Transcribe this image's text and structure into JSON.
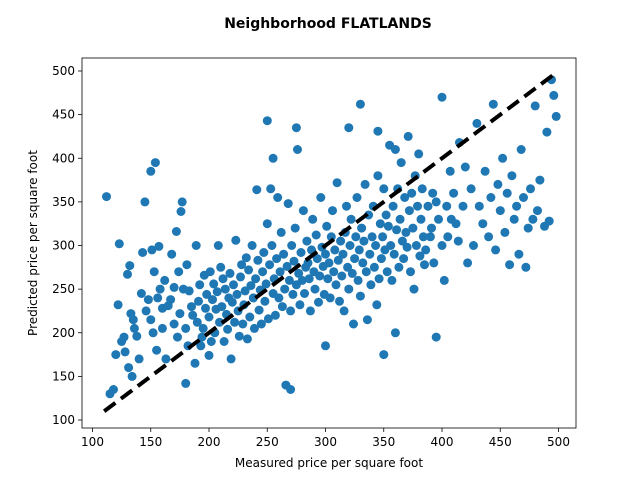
{
  "chart_data": {
    "type": "scatter",
    "title": "Neighborhood FLATLANDS",
    "xlabel": "Measured price per square foot",
    "ylabel": "Predicted price per square foot",
    "xlim": [
      100,
      500
    ],
    "ylim": [
      100,
      500
    ],
    "xticks": [
      100,
      150,
      200,
      250,
      300,
      350,
      400,
      450,
      500
    ],
    "yticks": [
      100,
      150,
      200,
      250,
      300,
      350,
      400,
      450,
      500
    ],
    "grid": false,
    "marker_color": "#1f77b4",
    "reference_line": {
      "style": "dashed",
      "color": "#000000",
      "from": [
        110,
        110
      ],
      "to": [
        498,
        498
      ]
    },
    "series": [
      {
        "points": [
          [
            112,
            356
          ],
          [
            115,
            130
          ],
          [
            118,
            135
          ],
          [
            120,
            175
          ],
          [
            122,
            232
          ],
          [
            123,
            302
          ],
          [
            125,
            190
          ],
          [
            127,
            195
          ],
          [
            128,
            178
          ],
          [
            130,
            267
          ],
          [
            131,
            160
          ],
          [
            132,
            277
          ],
          [
            133,
            222
          ],
          [
            134,
            150
          ],
          [
            135,
            215
          ],
          [
            136,
            205
          ],
          [
            138,
            196
          ],
          [
            140,
            170
          ],
          [
            142,
            245
          ],
          [
            143,
            292
          ],
          [
            145,
            350
          ],
          [
            146,
            225
          ],
          [
            148,
            238
          ],
          [
            150,
            215
          ],
          [
            150,
            385
          ],
          [
            151,
            295
          ],
          [
            152,
            200
          ],
          [
            153,
            270
          ],
          [
            154,
            395
          ],
          [
            155,
            180
          ],
          [
            156,
            240
          ],
          [
            157,
            299
          ],
          [
            158,
            250
          ],
          [
            160,
            205
          ],
          [
            160,
            228
          ],
          [
            162,
            260
          ],
          [
            163,
            170
          ],
          [
            165,
            231
          ],
          [
            167,
            238
          ],
          [
            168,
            290
          ],
          [
            170,
            210
          ],
          [
            170,
            252
          ],
          [
            172,
            316
          ],
          [
            173,
            195
          ],
          [
            174,
            270
          ],
          [
            175,
            222
          ],
          [
            176,
            339
          ],
          [
            177,
            350
          ],
          [
            178,
            250
          ],
          [
            180,
            142
          ],
          [
            180,
            205
          ],
          [
            181,
            278
          ],
          [
            182,
            185
          ],
          [
            183,
            248
          ],
          [
            185,
            230
          ],
          [
            186,
            220
          ],
          [
            188,
            165
          ],
          [
            189,
            300
          ],
          [
            190,
            212
          ],
          [
            191,
            236
          ],
          [
            192,
            255
          ],
          [
            193,
            185
          ],
          [
            194,
            195
          ],
          [
            195,
            205
          ],
          [
            196,
            266
          ],
          [
            197,
            228
          ],
          [
            198,
            244
          ],
          [
            200,
            174
          ],
          [
            200,
            218
          ],
          [
            201,
            270
          ],
          [
            202,
            190
          ],
          [
            203,
            238
          ],
          [
            204,
            256
          ],
          [
            205,
            200
          ],
          [
            206,
            227
          ],
          [
            207,
            247
          ],
          [
            208,
            300
          ],
          [
            209,
            212
          ],
          [
            210,
            275
          ],
          [
            211,
            230
          ],
          [
            212,
            262
          ],
          [
            213,
            190
          ],
          [
            214,
            250
          ],
          [
            215,
            221
          ],
          [
            216,
            204
          ],
          [
            217,
            240
          ],
          [
            218,
            268
          ],
          [
            219,
            170
          ],
          [
            220,
            235
          ],
          [
            221,
            255
          ],
          [
            222,
            212
          ],
          [
            223,
            306
          ],
          [
            224,
            244
          ],
          [
            225,
            225
          ],
          [
            226,
            196
          ],
          [
            227,
            264
          ],
          [
            228,
            278
          ],
          [
            229,
            210
          ],
          [
            230,
            232
          ],
          [
            231,
            248
          ],
          [
            232,
            286
          ],
          [
            233,
            193
          ],
          [
            234,
            272
          ],
          [
            235,
            218
          ],
          [
            236,
            254
          ],
          [
            237,
            300
          ],
          [
            238,
            240
          ],
          [
            239,
            205
          ],
          [
            240,
            262
          ],
          [
            241,
            364
          ],
          [
            242,
            283
          ],
          [
            243,
            226
          ],
          [
            244,
            249
          ],
          [
            245,
            210
          ],
          [
            246,
            270
          ],
          [
            247,
            292
          ],
          [
            248,
            236
          ],
          [
            249,
            256
          ],
          [
            250,
            325
          ],
          [
            250,
            443
          ],
          [
            251,
            216
          ],
          [
            252,
            278
          ],
          [
            253,
            365
          ],
          [
            254,
            300
          ],
          [
            255,
            245
          ],
          [
            255,
            400
          ],
          [
            256,
            262
          ],
          [
            257,
            220
          ],
          [
            258,
            285
          ],
          [
            259,
            355
          ],
          [
            260,
            240
          ],
          [
            261,
            270
          ],
          [
            262,
            315
          ],
          [
            263,
            230
          ],
          [
            264,
            290
          ],
          [
            265,
            250
          ],
          [
            266,
            140
          ],
          [
            267,
            276
          ],
          [
            268,
            348
          ],
          [
            269,
            260
          ],
          [
            270,
            225
          ],
          [
            270,
            135
          ],
          [
            271,
            300
          ],
          [
            272,
            244
          ],
          [
            273,
            282
          ],
          [
            274,
            320
          ],
          [
            275,
            255
          ],
          [
            275,
            435
          ],
          [
            276,
            410
          ],
          [
            277,
            268
          ],
          [
            278,
            232
          ],
          [
            279,
            292
          ],
          [
            280,
            260
          ],
          [
            281,
            340
          ],
          [
            282,
            245
          ],
          [
            283,
            275
          ],
          [
            284,
            305
          ],
          [
            285,
            280
          ],
          [
            286,
            262
          ],
          [
            287,
            225
          ],
          [
            288,
            295
          ],
          [
            289,
            330
          ],
          [
            290,
            270
          ],
          [
            291,
            250
          ],
          [
            292,
            312
          ],
          [
            293,
            285
          ],
          [
            294,
            235
          ],
          [
            295,
            265
          ],
          [
            296,
            355
          ],
          [
            297,
            298
          ],
          [
            298,
            276
          ],
          [
            299,
            244
          ],
          [
            300,
            290
          ],
          [
            300,
            185
          ],
          [
            301,
            322
          ],
          [
            302,
            262
          ],
          [
            303,
            280
          ],
          [
            304,
            240
          ],
          [
            305,
            310
          ],
          [
            306,
            340
          ],
          [
            307,
            270
          ],
          [
            308,
            295
          ],
          [
            309,
            255
          ],
          [
            310,
            372
          ],
          [
            311,
            283
          ],
          [
            312,
            236
          ],
          [
            313,
            305
          ],
          [
            314,
            265
          ],
          [
            315,
            290
          ],
          [
            316,
            225
          ],
          [
            317,
            315
          ],
          [
            318,
            345
          ],
          [
            319,
            275
          ],
          [
            320,
            435
          ],
          [
            320,
            250
          ],
          [
            321,
            300
          ],
          [
            322,
            330
          ],
          [
            323,
            268
          ],
          [
            324,
            210
          ],
          [
            325,
            285
          ],
          [
            326,
            310
          ],
          [
            327,
            355
          ],
          [
            328,
            260
          ],
          [
            329,
            295
          ],
          [
            330,
            462
          ],
          [
            330,
            242
          ],
          [
            331,
            320
          ],
          [
            332,
            280
          ],
          [
            333,
            305
          ],
          [
            334,
            370
          ],
          [
            335,
            270
          ],
          [
            336,
            215
          ],
          [
            337,
            335
          ],
          [
            338,
            290
          ],
          [
            339,
            255
          ],
          [
            340,
            310
          ],
          [
            341,
            345
          ],
          [
            342,
            275
          ],
          [
            343,
            300
          ],
          [
            344,
            232
          ],
          [
            345,
            380
          ],
          [
            345,
            431
          ],
          [
            346,
            262
          ],
          [
            347,
            325
          ],
          [
            348,
            285
          ],
          [
            349,
            310
          ],
          [
            350,
            365
          ],
          [
            350,
            175
          ],
          [
            351,
            295
          ],
          [
            352,
            335
          ],
          [
            353,
            270
          ],
          [
            354,
            322
          ],
          [
            355,
            415
          ],
          [
            356,
            300
          ],
          [
            357,
            260
          ],
          [
            358,
            345
          ],
          [
            359,
            290
          ],
          [
            360,
            200
          ],
          [
            360,
            410
          ],
          [
            361,
            318
          ],
          [
            362,
            365
          ],
          [
            363,
            275
          ],
          [
            364,
            330
          ],
          [
            365,
            395
          ],
          [
            366,
            305
          ],
          [
            367,
            285
          ],
          [
            368,
            355
          ],
          [
            369,
            315
          ],
          [
            370,
            298
          ],
          [
            371,
            425
          ],
          [
            372,
            340
          ],
          [
            373,
            270
          ],
          [
            374,
            360
          ],
          [
            375,
            320
          ],
          [
            376,
            250
          ],
          [
            377,
            380
          ],
          [
            378,
            300
          ],
          [
            379,
            345
          ],
          [
            380,
            405
          ],
          [
            381,
            288
          ],
          [
            382,
            330
          ],
          [
            383,
            365
          ],
          [
            384,
            310
          ],
          [
            385,
            278
          ],
          [
            386,
            295
          ],
          [
            388,
            345
          ],
          [
            390,
            310
          ],
          [
            391,
            320
          ],
          [
            392,
            360
          ],
          [
            393,
            280
          ],
          [
            395,
            195
          ],
          [
            395,
            350
          ],
          [
            397,
            330
          ],
          [
            400,
            300
          ],
          [
            400,
            470
          ],
          [
            402,
            260
          ],
          [
            404,
            345
          ],
          [
            405,
            310
          ],
          [
            407,
            385
          ],
          [
            408,
            330
          ],
          [
            410,
            360
          ],
          [
            412,
            325
          ],
          [
            414,
            305
          ],
          [
            415,
            418
          ],
          [
            418,
            345
          ],
          [
            420,
            390
          ],
          [
            422,
            280
          ],
          [
            425,
            365
          ],
          [
            427,
            300
          ],
          [
            430,
            440
          ],
          [
            432,
            345
          ],
          [
            435,
            325
          ],
          [
            437,
            385
          ],
          [
            440,
            310
          ],
          [
            442,
            355
          ],
          [
            444,
            462
          ],
          [
            446,
            295
          ],
          [
            448,
            370
          ],
          [
            450,
            340
          ],
          [
            452,
            400
          ],
          [
            454,
            315
          ],
          [
            456,
            360
          ],
          [
            458,
            278
          ],
          [
            460,
            380
          ],
          [
            462,
            330
          ],
          [
            464,
            345
          ],
          [
            466,
            290
          ],
          [
            468,
            410
          ],
          [
            470,
            355
          ],
          [
            472,
            275
          ],
          [
            474,
            320
          ],
          [
            476,
            365
          ],
          [
            478,
            330
          ],
          [
            480,
            460
          ],
          [
            482,
            340
          ],
          [
            484,
            375
          ],
          [
            488,
            322
          ],
          [
            490,
            430
          ],
          [
            492,
            328
          ],
          [
            494,
            490
          ],
          [
            496,
            472
          ],
          [
            498,
            448
          ]
        ]
      }
    ]
  }
}
